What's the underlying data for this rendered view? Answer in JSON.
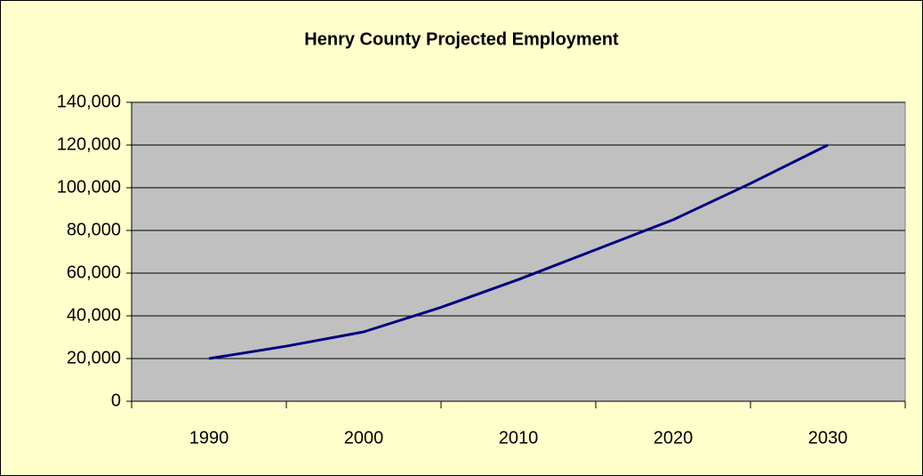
{
  "chart_data": {
    "type": "line",
    "title": "Henry County Projected Employment",
    "x": [
      1990,
      1995,
      2000,
      2005,
      2010,
      2015,
      2020,
      2025,
      2030
    ],
    "series": [
      {
        "name": "Employment",
        "color": "#000080",
        "values": [
          20000,
          25800,
          32500,
          44000,
          57000,
          71000,
          85000,
          102000,
          120000
        ]
      }
    ],
    "xlim": [
      1985,
      2035
    ],
    "xticks": [
      1990,
      2000,
      2010,
      2020,
      2030
    ],
    "ylim": [
      0,
      140000
    ],
    "yticks": [
      0,
      {
        "value": 20000,
        "label": "20,000"
      },
      {
        "value": 40000,
        "label": "40,000"
      },
      {
        "value": 60000,
        "label": "60,000"
      },
      {
        "value": 80000,
        "label": "80,000"
      },
      {
        "value": 100000,
        "label": "100,000"
      },
      {
        "value": 120000,
        "label": "120,000"
      },
      {
        "value": 140000,
        "label": "140,000"
      }
    ],
    "grid": true,
    "background": "#ffffcc",
    "plot_background": "#c0c0c0"
  }
}
